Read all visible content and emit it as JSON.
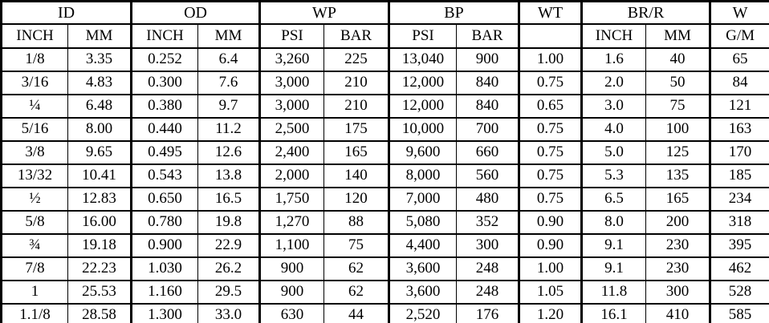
{
  "table": {
    "groups": [
      {
        "label": "ID",
        "colspan": 2
      },
      {
        "label": "OD",
        "colspan": 2
      },
      {
        "label": "WP",
        "colspan": 2
      },
      {
        "label": "BP",
        "colspan": 2
      },
      {
        "label": "WT",
        "colspan": 1
      },
      {
        "label": "BR/R",
        "colspan": 2
      },
      {
        "label": "W",
        "colspan": 1
      }
    ],
    "subheaders": [
      "INCH",
      "MM",
      "INCH",
      "MM",
      "PSI",
      "BAR",
      "PSI",
      "BAR",
      "",
      "INCH",
      "MM",
      "G/M"
    ],
    "rows": [
      [
        "1/8",
        "3.35",
        "0.252",
        "6.4",
        "3,260",
        "225",
        "13,040",
        "900",
        "1.00",
        "1.6",
        "40",
        "65"
      ],
      [
        "3/16",
        "4.83",
        "0.300",
        "7.6",
        "3,000",
        "210",
        "12,000",
        "840",
        "0.75",
        "2.0",
        "50",
        "84"
      ],
      [
        "¼",
        "6.48",
        "0.380",
        "9.7",
        "3,000",
        "210",
        "12,000",
        "840",
        "0.65",
        "3.0",
        "75",
        "121"
      ],
      [
        "5/16",
        "8.00",
        "0.440",
        "11.2",
        "2,500",
        "175",
        "10,000",
        "700",
        "0.75",
        "4.0",
        "100",
        "163"
      ],
      [
        "3/8",
        "9.65",
        "0.495",
        "12.6",
        "2,400",
        "165",
        "9,600",
        "660",
        "0.75",
        "5.0",
        "125",
        "170"
      ],
      [
        "13/32",
        "10.41",
        "0.543",
        "13.8",
        "2,000",
        "140",
        "8,000",
        "560",
        "0.75",
        "5.3",
        "135",
        "185"
      ],
      [
        "½",
        "12.83",
        "0.650",
        "16.5",
        "1,750",
        "120",
        "7,000",
        "480",
        "0.75",
        "6.5",
        "165",
        "234"
      ],
      [
        "5/8",
        "16.00",
        "0.780",
        "19.8",
        "1,270",
        "88",
        "5,080",
        "352",
        "0.90",
        "8.0",
        "200",
        "318"
      ],
      [
        "¾",
        "19.18",
        "0.900",
        "22.9",
        "1,100",
        "75",
        "4,400",
        "300",
        "0.90",
        "9.1",
        "230",
        "395"
      ],
      [
        "7/8",
        "22.23",
        "1.030",
        "26.2",
        "900",
        "62",
        "3,600",
        "248",
        "1.00",
        "9.1",
        "230",
        "462"
      ],
      [
        "1",
        "25.53",
        "1.160",
        "29.5",
        "900",
        "62",
        "3,600",
        "248",
        "1.05",
        "11.8",
        "300",
        "528"
      ],
      [
        "1.1/8",
        "28.58",
        "1.300",
        "33.0",
        "630",
        "44",
        "2,520",
        "176",
        "1.20",
        "16.1",
        "410",
        "585"
      ]
    ],
    "colors": {
      "border": "#000000",
      "text": "#000000",
      "background": "#ffffff"
    }
  }
}
